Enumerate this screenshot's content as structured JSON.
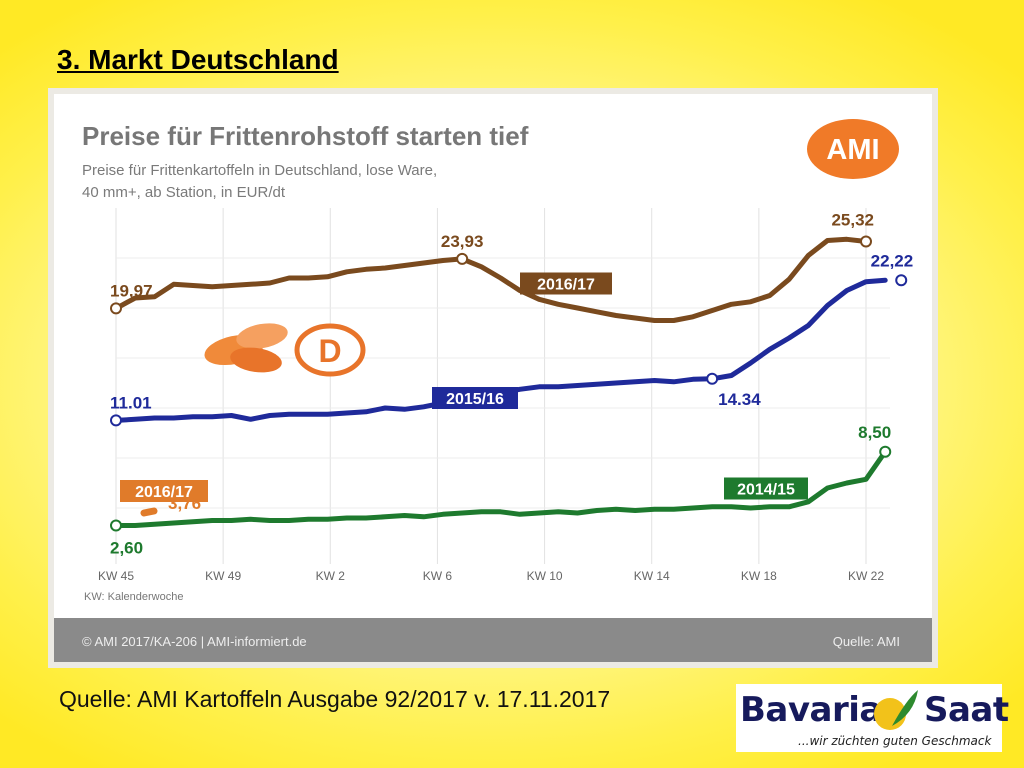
{
  "slide": {
    "title": "3. Markt Deutschland",
    "source_caption": "Quelle: AMI Kartoffeln Ausgabe 92/2017 v. 17.11.2017"
  },
  "logo": {
    "brand_left": "Bavaria",
    "brand_right": "Saat",
    "tagline": "...wir züchten guten Geschmack"
  },
  "chart_badge": "AMI",
  "flag_letter": "D",
  "chart_data": {
    "type": "line",
    "title": "Preise für Frittenrohstoff starten tief",
    "subtitle_line1": "Preise für Frittenkartoffeln in Deutschland, lose Ware,",
    "subtitle_line2": "40 mm+, ab Station, in EUR/dt",
    "xlabel": "KW: Kalenderwoche",
    "ylabel": "",
    "grid": true,
    "ylim": [
      0,
      28
    ],
    "x_tick_labels": [
      "KW 45",
      "KW 49",
      "KW 2",
      "KW 6",
      "KW 10",
      "KW 14",
      "KW 18",
      "KW 22"
    ],
    "footer_left": "© AMI 2017/KA-206 | AMI-informiert.de",
    "footer_right": "Quelle: AMI",
    "series": [
      {
        "name": "2016/17",
        "color": "#7a4a1e",
        "values": [
          19.97,
          20.8,
          20.9,
          21.9,
          21.8,
          21.7,
          21.8,
          21.9,
          22.0,
          22.4,
          22.4,
          22.5,
          22.9,
          23.1,
          23.2,
          23.4,
          23.6,
          23.8,
          23.93,
          23.3,
          22.4,
          21.4,
          20.7,
          20.3,
          20.0,
          19.7,
          19.4,
          19.2,
          19.0,
          19.0,
          19.3,
          19.8,
          20.3,
          20.5,
          21.0,
          22.3,
          24.2,
          25.4,
          25.5,
          25.32
        ],
        "start_label": "19,97",
        "peak_label": "23,93",
        "end_label": "25,32"
      },
      {
        "name": "2015/16",
        "color": "#1f2a9a",
        "values": [
          11.01,
          11.1,
          11.2,
          11.2,
          11.3,
          11.3,
          11.4,
          11.1,
          11.4,
          11.5,
          11.5,
          11.5,
          11.6,
          11.7,
          12.0,
          11.9,
          12.1,
          12.4,
          12.7,
          12.9,
          13.2,
          13.5,
          13.7,
          13.7,
          13.8,
          13.9,
          14.0,
          14.1,
          14.2,
          14.1,
          14.3,
          14.34,
          14.6,
          15.6,
          16.7,
          17.6,
          18.6,
          20.2,
          21.4,
          22.1,
          22.22
        ],
        "start_label": "11.01",
        "low_label": "14.34",
        "end_label": "22,22"
      },
      {
        "name": "2014/15",
        "color": "#1e7a2e",
        "values": [
          2.6,
          2.6,
          2.7,
          2.8,
          2.9,
          3.0,
          3.0,
          3.1,
          3.0,
          3.0,
          3.1,
          3.1,
          3.2,
          3.2,
          3.3,
          3.4,
          3.3,
          3.5,
          3.6,
          3.7,
          3.7,
          3.5,
          3.6,
          3.7,
          3.6,
          3.8,
          3.9,
          3.8,
          3.9,
          3.9,
          4.0,
          4.1,
          4.1,
          4.0,
          4.1,
          4.1,
          4.5,
          5.6,
          6.0,
          6.3,
          8.5
        ],
        "start_label": "2,60",
        "end_label": "8,50"
      },
      {
        "name": "2016/17",
        "color": "#e07b2a",
        "values": [
          3.6,
          3.76
        ],
        "end_label": "3,76"
      }
    ]
  }
}
